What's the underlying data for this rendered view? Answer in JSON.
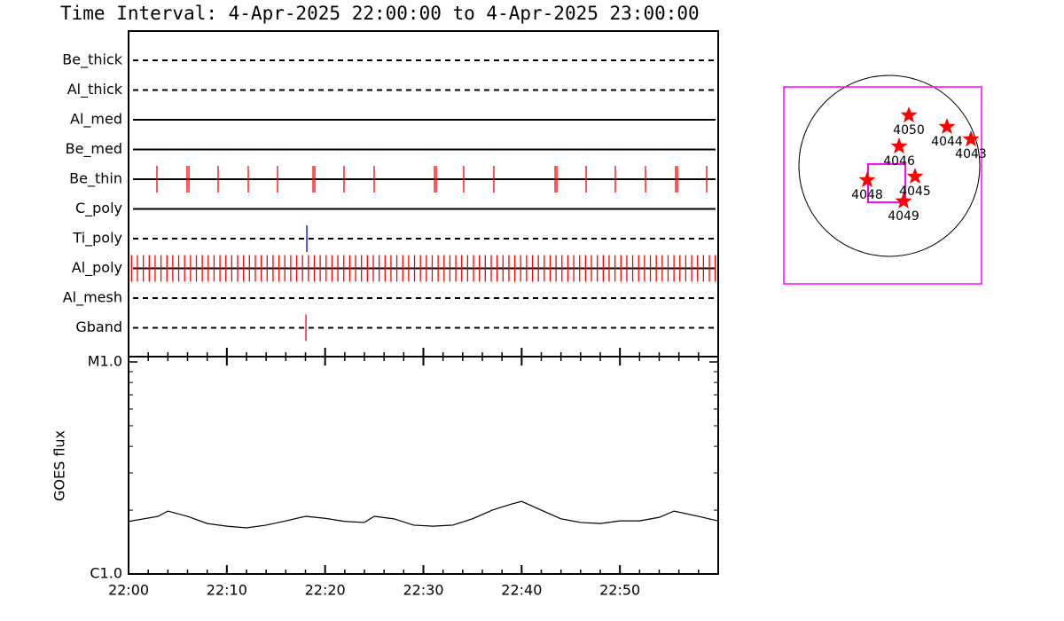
{
  "chart_data": [
    {
      "type": "timeline",
      "title": "Time Interval:  4-Apr-2025 22:00:00 to  4-Apr-2025 23:00:00",
      "xlim": [
        0,
        60
      ],
      "rows": [
        {
          "name": "Be_thick",
          "style": "dashed",
          "color": "#ff0000",
          "values": []
        },
        {
          "name": "Al_thick",
          "style": "dashed",
          "color": "#ff0000",
          "values": []
        },
        {
          "name": "Al_med",
          "style": "solid",
          "color": "#ff0000",
          "values": []
        },
        {
          "name": "Be_med",
          "style": "solid",
          "color": "#ff0000",
          "values": []
        },
        {
          "name": "Be_thin",
          "style": "solid",
          "color": "#ff0000",
          "values": [
            2.89,
            5.95,
            6.14,
            9.11,
            12.18,
            15.16,
            18.77,
            18.95,
            21.92,
            24.99,
            31.13,
            31.31,
            34.1,
            37.17,
            43.4,
            43.58,
            46.56,
            49.53,
            52.6,
            55.67,
            55.85,
            58.83
          ]
        },
        {
          "name": "C_poly",
          "style": "solid",
          "color": "#ff0000",
          "values": []
        },
        {
          "name": "Ti_poly",
          "style": "dashed",
          "color": "#0000cc",
          "values": [
            18.14
          ]
        },
        {
          "name": "Al_poly",
          "style": "solid",
          "color": "#ff0000",
          "values": [
            0.3,
            0.9,
            1.5,
            2.1,
            2.7,
            3.3,
            3.9,
            4.5,
            5.1,
            5.7,
            6.3,
            6.9,
            7.5,
            8.1,
            8.7,
            9.3,
            9.9,
            10.5,
            11.1,
            11.7,
            12.3,
            12.9,
            13.5,
            14.1,
            14.7,
            15.3,
            15.9,
            16.5,
            17.1,
            17.7,
            18.3,
            18.9,
            19.5,
            20.1,
            20.7,
            21.3,
            21.9,
            22.5,
            23.1,
            23.7,
            24.3,
            24.9,
            25.5,
            26.1,
            26.7,
            27.3,
            27.9,
            28.5,
            29.1,
            29.7,
            30.3,
            30.9,
            31.5,
            32.1,
            32.7,
            33.3,
            33.9,
            34.5,
            35.1,
            35.7,
            36.3,
            36.9,
            37.5,
            38.1,
            38.7,
            39.3,
            39.9,
            40.5,
            41.1,
            41.7,
            42.3,
            42.9,
            43.5,
            44.1,
            44.7,
            45.3,
            45.9,
            46.5,
            47.1,
            47.7,
            48.3,
            48.9,
            49.5,
            50.1,
            50.7,
            51.3,
            51.9,
            52.5,
            53.1,
            53.7,
            54.3,
            54.9,
            55.5,
            56.1,
            56.7,
            57.3,
            57.9,
            58.5,
            59.1,
            59.7
          ]
        },
        {
          "name": "Al_mesh",
          "style": "dashed",
          "color": "#ff0000",
          "values": []
        },
        {
          "name": "Gband",
          "style": "dashed",
          "color": "#ff0000",
          "values": [
            18.05
          ]
        }
      ]
    },
    {
      "type": "line",
      "ylabel": "GOES flux",
      "color": "#000000",
      "log": true,
      "xlim": [
        0,
        60
      ],
      "xticks": [
        {
          "value": 0,
          "label": "22:00"
        },
        {
          "value": 10,
          "label": "22:10"
        },
        {
          "value": 20,
          "label": "22:20"
        },
        {
          "value": 30,
          "label": "22:30"
        },
        {
          "value": 40,
          "label": "22:40"
        },
        {
          "value": 50,
          "label": "22:50"
        }
      ],
      "xminor": [
        2,
        4,
        6,
        8,
        12,
        14,
        16,
        18,
        22,
        24,
        26,
        28,
        32,
        34,
        36,
        38,
        42,
        44,
        46,
        48,
        52,
        54,
        56,
        58
      ],
      "ylim": [
        1e-06,
        1e-05
      ],
      "yticks": [
        {
          "value": 1e-05,
          "label": "M1.0"
        },
        {
          "value": 1e-06,
          "label": "C1.0"
        }
      ],
      "yminor": [
        2e-06,
        3e-06,
        4e-06,
        5e-06,
        6e-06,
        7e-06,
        8e-06,
        9e-06
      ],
      "x": [
        0,
        3,
        4,
        6,
        8,
        10,
        12,
        14,
        16,
        18,
        20,
        22,
        24,
        25,
        27,
        29,
        31,
        33,
        35,
        37,
        39,
        40,
        42,
        44,
        46,
        48,
        50,
        52,
        54,
        55.5,
        58,
        60
      ],
      "values": [
        1.77e-06,
        1.87e-06,
        1.98e-06,
        1.87e-06,
        1.73e-06,
        1.68e-06,
        1.65e-06,
        1.7e-06,
        1.78e-06,
        1.87e-06,
        1.83e-06,
        1.77e-06,
        1.75e-06,
        1.87e-06,
        1.82e-06,
        1.7e-06,
        1.68e-06,
        1.7e-06,
        1.82e-06,
        2e-06,
        2.14e-06,
        2.2e-06,
        2e-06,
        1.82e-06,
        1.75e-06,
        1.73e-06,
        1.78e-06,
        1.78e-06,
        1.85e-06,
        1.98e-06,
        1.87e-06,
        1.78e-06
      ]
    },
    {
      "type": "map",
      "xlim": [
        -1120,
        979
      ],
      "ylim": [
        -1252,
        837
      ],
      "box_color": "#ff00ff",
      "color": "#ff0000",
      "fov": {
        "x": [
          -226,
          170
        ],
        "y": [
          -386,
          19
        ]
      },
      "regions": {
        "names": [
          "4050",
          "4044",
          "4043",
          "4046",
          "4045",
          "4048",
          "4049"
        ],
        "x": [
          207,
          612,
          866,
          104,
          273,
          -235,
          151
        ],
        "y": [
          536,
          414,
          282,
          207,
          -113,
          -151,
          -376
        ]
      }
    }
  ]
}
